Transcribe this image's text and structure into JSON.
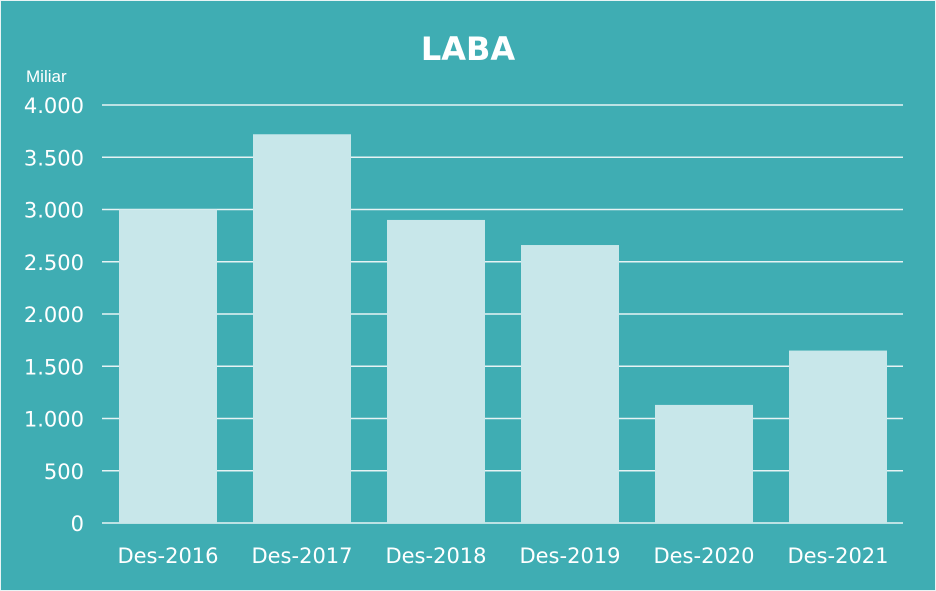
{
  "chart_data": {
    "type": "bar",
    "title": "LABA",
    "unit_label": "Miliar",
    "categories": [
      "Des-2016",
      "Des-2017",
      "Des-2018",
      "Des-2019",
      "Des-2020",
      "Des-2021"
    ],
    "values": [
      3000,
      3720,
      2900,
      2660,
      1130,
      1650
    ],
    "ylim": [
      0,
      4000
    ],
    "yticks": [
      0,
      500,
      1000,
      1500,
      2000,
      2500,
      3000,
      3500,
      4000
    ],
    "ytick_labels": [
      "0",
      "500",
      "1.000",
      "1.500",
      "2.000",
      "2.500",
      "3.000",
      "3.500",
      "4.000"
    ],
    "grid": true,
    "legend": "none",
    "colors": {
      "background": "#3fadb3",
      "bar": "#c8e7ea",
      "grid": "#e6f3f4",
      "text": "#ffffff"
    }
  }
}
